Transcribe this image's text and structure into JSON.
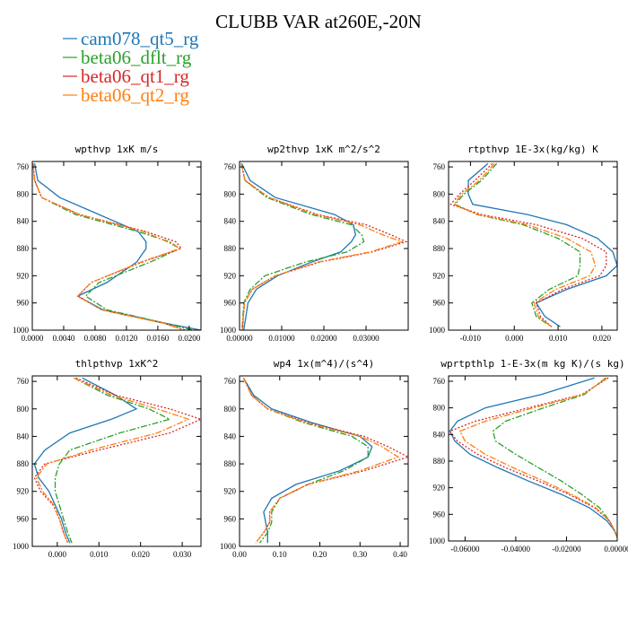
{
  "figure": {
    "title": "CLUBB VAR at260E,-20N",
    "colors": {
      "cam078_qt5_rg": "#1f77b4",
      "beta06_dflt_rg": "#2ca02c",
      "beta06_qt1_rg": "#d62728",
      "beta06_qt2_rg": "#ff7f0e"
    }
  },
  "legend": [
    {
      "label": "cam078_qt5_rg",
      "color": "#1f77b4",
      "dash": "solid"
    },
    {
      "label": "beta06_dflt_rg",
      "color": "#2ca02c",
      "dash": "dashdot"
    },
    {
      "label": "beta06_qt1_rg",
      "color": "#d62728",
      "dash": "dotted"
    },
    {
      "label": "beta06_qt2_rg",
      "color": "#ff7f0e",
      "dash": "dashdot"
    }
  ],
  "chart_data": [
    {
      "type": "line",
      "title": "wpthvp  1xK m/s",
      "xlim": [
        0,
        0.0215
      ],
      "ylim": [
        1000,
        752
      ],
      "xticks": [
        "0.0000",
        "0.0040",
        "0.0080",
        "0.0120",
        "0.0160",
        "0.0200"
      ],
      "xtick_values": [
        0,
        0.004,
        0.008,
        0.012,
        0.016,
        0.02
      ],
      "yticks": [
        760,
        800,
        840,
        880,
        920,
        960,
        1000
      ],
      "y": [
        755,
        780,
        805,
        830,
        855,
        870,
        880,
        900,
        930,
        950,
        970,
        990,
        1000
      ],
      "series": [
        {
          "name": "cam078_qt5_rg",
          "x": [
            0.0003,
            0.0007,
            0.0035,
            0.0085,
            0.0135,
            0.0145,
            0.0145,
            0.0133,
            0.0095,
            0.0058,
            0.009,
            0.017,
            0.0215
          ]
        },
        {
          "name": "beta06_dflt_rg",
          "x": [
            0.0001,
            0.0003,
            0.0012,
            0.0055,
            0.0135,
            0.0175,
            0.0188,
            0.015,
            0.0085,
            0.0068,
            0.0095,
            0.017,
            0.0205
          ]
        },
        {
          "name": "beta06_qt1_rg",
          "x": [
            0.0001,
            0.0003,
            0.0012,
            0.006,
            0.0145,
            0.0183,
            0.019,
            0.014,
            0.0075,
            0.0058,
            0.0088,
            0.0168,
            0.0195
          ]
        },
        {
          "name": "beta06_qt2_rg",
          "x": [
            0.0001,
            0.0003,
            0.0012,
            0.006,
            0.0142,
            0.0172,
            0.0188,
            0.0138,
            0.0075,
            0.0058,
            0.0088,
            0.0168,
            0.0193
          ]
        }
      ]
    },
    {
      "type": "line",
      "title": "wp2thvp  1xK m^2/s^2",
      "xlim": [
        0,
        0.04
      ],
      "ylim": [
        1000,
        752
      ],
      "xticks": [
        "0.00000",
        "0.01000",
        "0.02000",
        "0.03000"
      ],
      "xtick_values": [
        0,
        0.01,
        0.02,
        0.03
      ],
      "yticks": [
        760,
        800,
        840,
        880,
        920,
        960,
        1000
      ],
      "y": [
        755,
        780,
        805,
        830,
        845,
        860,
        870,
        885,
        900,
        920,
        940,
        960,
        980,
        1000
      ],
      "series": [
        {
          "name": "cam078_qt5_rg",
          "x": [
            0.0005,
            0.0025,
            0.0085,
            0.0225,
            0.027,
            0.0275,
            0.0265,
            0.024,
            0.017,
            0.009,
            0.004,
            0.002,
            0.0015,
            0.001
          ]
        },
        {
          "name": "beta06_dflt_rg",
          "x": [
            0.0004,
            0.0013,
            0.0065,
            0.017,
            0.0265,
            0.029,
            0.0295,
            0.0255,
            0.0155,
            0.006,
            0.0025,
            0.001,
            0.0008,
            0.0006
          ]
        },
        {
          "name": "beta06_qt1_rg",
          "x": [
            0.0004,
            0.0013,
            0.007,
            0.0185,
            0.03,
            0.036,
            0.0395,
            0.0315,
            0.019,
            0.0085,
            0.003,
            0.0012,
            0.0009,
            0.0007
          ]
        },
        {
          "name": "beta06_qt2_rg",
          "x": [
            0.0004,
            0.0013,
            0.007,
            0.018,
            0.0285,
            0.034,
            0.0385,
            0.031,
            0.0185,
            0.0085,
            0.003,
            0.0012,
            0.0009,
            0.0007
          ]
        }
      ]
    },
    {
      "type": "line",
      "title": "rtpthvp  1E-3x(kg/kg) K",
      "xlim": [
        -0.015,
        0.0235
      ],
      "ylim": [
        1000,
        752
      ],
      "xticks": [
        "-0.010",
        "0.000",
        "0.010",
        "0.020"
      ],
      "xtick_values": [
        -0.01,
        0,
        0.01,
        0.02
      ],
      "yticks": [
        760,
        800,
        840,
        880,
        920,
        960,
        1000
      ],
      "y": [
        755,
        780,
        800,
        815,
        830,
        845,
        865,
        885,
        905,
        920,
        940,
        960,
        980,
        995
      ],
      "series": [
        {
          "name": "cam078_qt5_rg",
          "x": [
            -0.006,
            -0.0105,
            -0.0105,
            -0.0095,
            0.003,
            0.012,
            0.019,
            0.0225,
            0.0235,
            0.021,
            0.012,
            0.005,
            0.007,
            0.0105
          ]
        },
        {
          "name": "beta06_dflt_rg",
          "x": [
            -0.004,
            -0.0075,
            -0.0115,
            -0.0135,
            -0.0085,
            0.002,
            0.01,
            0.015,
            0.015,
            0.0145,
            0.008,
            0.004,
            0.005,
            0.0085
          ]
        },
        {
          "name": "beta06_qt1_rg",
          "x": [
            -0.005,
            -0.009,
            -0.0125,
            -0.0145,
            -0.0075,
            0.005,
            0.0155,
            0.021,
            0.021,
            0.0195,
            0.011,
            0.005,
            0.006,
            0.0085
          ]
        },
        {
          "name": "beta06_qt2_rg",
          "x": [
            -0.0045,
            -0.008,
            -0.012,
            -0.0138,
            -0.0085,
            0.003,
            0.012,
            0.0175,
            0.0185,
            0.0172,
            0.0095,
            0.0045,
            0.0055,
            0.0085
          ]
        }
      ]
    },
    {
      "type": "line",
      "title": "thlpthvp  1xK^2",
      "xlim": [
        -0.006,
        0.0345
      ],
      "ylim": [
        1000,
        752
      ],
      "xticks": [
        "0.000",
        "0.010",
        "0.020",
        "0.030"
      ],
      "xtick_values": [
        0,
        0.01,
        0.02,
        0.03
      ],
      "yticks": [
        760,
        800,
        840,
        880,
        920,
        960,
        1000
      ],
      "y": [
        755,
        780,
        800,
        815,
        835,
        860,
        880,
        900,
        920,
        940,
        960,
        980,
        995
      ],
      "series": [
        {
          "name": "cam078_qt5_rg",
          "x": [
            0.006,
            0.014,
            0.019,
            0.013,
            0.003,
            -0.003,
            -0.0055,
            -0.0045,
            -0.002,
            -0.0005,
            0.001,
            0.002,
            0.003
          ]
        },
        {
          "name": "beta06_dflt_rg",
          "x": [
            0.004,
            0.012,
            0.022,
            0.027,
            0.015,
            0.003,
            0.0005,
            -0.0005,
            -0.0005,
            0.0005,
            0.0015,
            0.0025,
            0.0035
          ]
        },
        {
          "name": "beta06_qt1_rg",
          "x": [
            0.0045,
            0.014,
            0.027,
            0.0345,
            0.027,
            0.01,
            -0.003,
            -0.0055,
            -0.004,
            -0.001,
            0.0005,
            0.0015,
            0.0025
          ]
        },
        {
          "name": "beta06_qt2_rg",
          "x": [
            0.004,
            0.013,
            0.024,
            0.0315,
            0.024,
            0.008,
            -0.0025,
            -0.005,
            -0.0035,
            -0.0008,
            0.0005,
            0.0015,
            0.0025
          ]
        }
      ]
    },
    {
      "type": "line",
      "title": "wp4  1x(m^4)/(s^4)",
      "xlim": [
        0,
        0.42
      ],
      "ylim": [
        1000,
        752
      ],
      "xticks": [
        "0.00",
        "0.10",
        "0.20",
        "0.30",
        "0.40"
      ],
      "xtick_values": [
        0,
        0.1,
        0.2,
        0.3,
        0.4
      ],
      "yticks": [
        760,
        800,
        840,
        880,
        920,
        960,
        1000
      ],
      "y": [
        755,
        780,
        800,
        820,
        840,
        855,
        870,
        890,
        910,
        930,
        950,
        965,
        980,
        995
      ],
      "series": [
        {
          "name": "cam078_qt5_rg",
          "x": [
            0.01,
            0.035,
            0.08,
            0.18,
            0.3,
            0.33,
            0.32,
            0.25,
            0.14,
            0.08,
            0.06,
            0.065,
            0.07,
            0.07
          ]
        },
        {
          "name": "beta06_dflt_rg",
          "x": [
            0.01,
            0.03,
            0.07,
            0.16,
            0.28,
            0.32,
            0.32,
            0.26,
            0.17,
            0.1,
            0.08,
            0.08,
            0.07,
            0.05
          ]
        },
        {
          "name": "beta06_qt1_rg",
          "x": [
            0.01,
            0.03,
            0.07,
            0.17,
            0.31,
            0.37,
            0.42,
            0.31,
            0.17,
            0.1,
            0.075,
            0.075,
            0.06,
            0.04
          ]
        },
        {
          "name": "beta06_qt2_rg",
          "x": [
            0.01,
            0.03,
            0.07,
            0.165,
            0.3,
            0.355,
            0.395,
            0.3,
            0.17,
            0.1,
            0.075,
            0.075,
            0.06,
            0.04
          ]
        }
      ]
    },
    {
      "type": "line",
      "title": "wprtpthlp  1-E-3x(m kg K)/(s kg)",
      "xlim": [
        -0.0665,
        0
      ],
      "ylim": [
        1000,
        752
      ],
      "xticks": [
        "-0.06000",
        "-0.04000",
        "-0.02000",
        "0.00000"
      ],
      "xtick_values": [
        -0.06,
        -0.04,
        -0.02,
        0
      ],
      "yticks": [
        760,
        800,
        840,
        880,
        920,
        960,
        1000
      ],
      "y": [
        755,
        780,
        800,
        820,
        835,
        850,
        870,
        890,
        910,
        930,
        950,
        970,
        985,
        995
      ],
      "series": [
        {
          "name": "cam078_qt5_rg",
          "x": [
            -0.009,
            -0.03,
            -0.052,
            -0.063,
            -0.066,
            -0.064,
            -0.058,
            -0.047,
            -0.035,
            -0.022,
            -0.011,
            -0.004,
            -0.001,
            0
          ]
        },
        {
          "name": "beta06_dflt_rg",
          "x": [
            -0.0045,
            -0.013,
            -0.029,
            -0.044,
            -0.049,
            -0.048,
            -0.04,
            -0.031,
            -0.022,
            -0.014,
            -0.007,
            -0.003,
            -0.001,
            0
          ]
        },
        {
          "name": "beta06_qt1_rg",
          "x": [
            -0.0035,
            -0.014,
            -0.035,
            -0.056,
            -0.066,
            -0.063,
            -0.055,
            -0.044,
            -0.031,
            -0.019,
            -0.009,
            -0.003,
            -0.001,
            0
          ]
        },
        {
          "name": "beta06_qt2_rg",
          "x": [
            -0.004,
            -0.0135,
            -0.033,
            -0.052,
            -0.062,
            -0.06,
            -0.052,
            -0.041,
            -0.029,
            -0.018,
            -0.0085,
            -0.003,
            -0.001,
            0
          ]
        }
      ]
    }
  ]
}
